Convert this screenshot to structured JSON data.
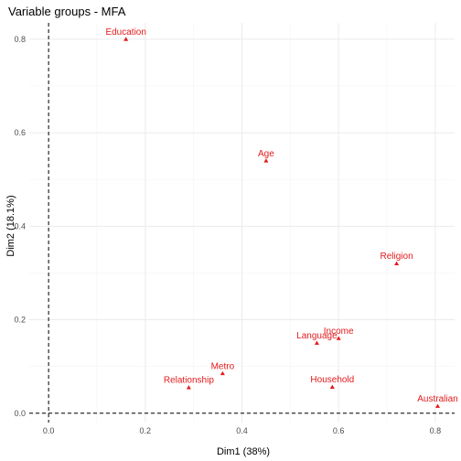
{
  "chart_data": {
    "type": "scatter",
    "title": "Variable groups - MFA",
    "xlabel": "Dim1 (38%)",
    "ylabel": "Dim2 (18.1%)",
    "xlim": [
      -0.04,
      0.84
    ],
    "ylim": [
      -0.02,
      0.835
    ],
    "x_ticks": [
      0.0,
      0.2,
      0.4,
      0.6,
      0.8
    ],
    "x_tick_labels": [
      "0.0",
      "0.2",
      "0.4",
      "0.6",
      "0.8"
    ],
    "y_ticks": [
      0.0,
      0.2,
      0.4,
      0.6,
      0.8
    ],
    "y_tick_labels": [
      "0.0",
      "0.2",
      "0.4",
      "0.6",
      "0.8"
    ],
    "grid": true,
    "reference_lines": {
      "x": 0,
      "y": 0,
      "style": "dashed"
    },
    "marker_color": "#e41a1c",
    "points": [
      {
        "label": "Education",
        "x": 0.16,
        "y": 0.8
      },
      {
        "label": "Age",
        "x": 0.45,
        "y": 0.54
      },
      {
        "label": "Religion",
        "x": 0.72,
        "y": 0.32
      },
      {
        "label": "Income",
        "x": 0.6,
        "y": 0.16
      },
      {
        "label": "Language",
        "x": 0.555,
        "y": 0.15
      },
      {
        "label": "Metro",
        "x": 0.36,
        "y": 0.085
      },
      {
        "label": "Relationship",
        "x": 0.29,
        "y": 0.055
      },
      {
        "label": "Household",
        "x": 0.587,
        "y": 0.056
      },
      {
        "label": "Australian",
        "x": 0.805,
        "y": 0.015
      }
    ]
  }
}
